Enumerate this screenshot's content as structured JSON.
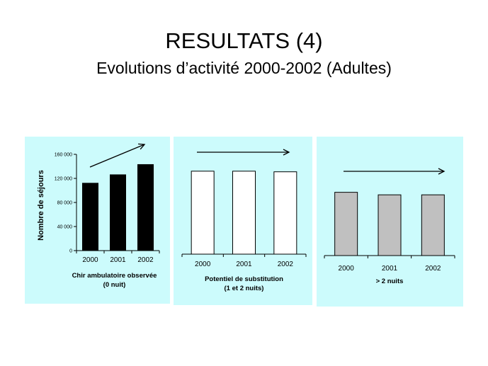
{
  "slide": {
    "title": "RESULTATS (4)",
    "subtitle": "Evolutions d’activité 2000-2002 (Adultes)"
  },
  "chart_data": [
    {
      "type": "bar",
      "categories": [
        "2000",
        "2001",
        "2002"
      ],
      "values": [
        112000,
        126000,
        143000
      ],
      "ylabel": "Nombre de séjours",
      "ylim": [
        0,
        160000
      ],
      "yticks": [
        "0",
        "40 000",
        "80 000",
        "120 000",
        "160 000"
      ],
      "caption": [
        "Chir ambulatoire observée",
        "(0 nuit)"
      ],
      "bar_color": "#000000",
      "trend": "up"
    },
    {
      "type": "bar",
      "categories": [
        "2000",
        "2001",
        "2002"
      ],
      "values": [
        133000,
        133000,
        132000
      ],
      "ylim": [
        0,
        160000
      ],
      "caption": [
        "Potentiel de substitution",
        "(1 et 2 nuits)"
      ],
      "bar_color": "#ffffff",
      "trend": "flat"
    },
    {
      "type": "bar",
      "categories": [
        "2000",
        "2001",
        "2002"
      ],
      "values": [
        100000,
        96000,
        96000
      ],
      "ylim": [
        0,
        160000
      ],
      "caption": [
        "> 2 nuits"
      ],
      "bar_color": "#c0c0c0",
      "trend": "flat"
    }
  ]
}
